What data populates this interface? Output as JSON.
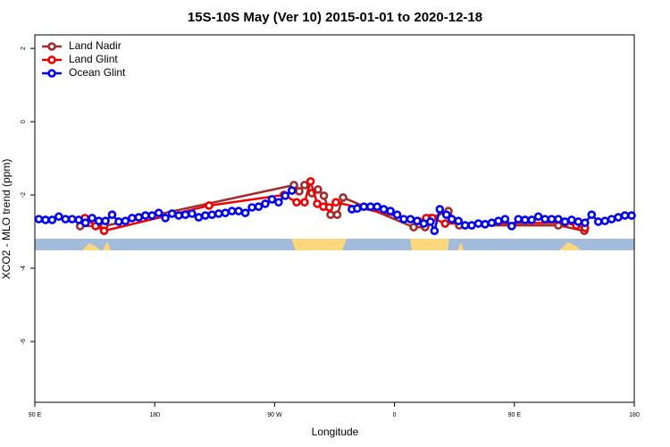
{
  "chart_data": {
    "type": "line",
    "title": "15S-10S May (Ver 10)   2015-01-01 to 2020-12-18",
    "x_label": "Longitude",
    "y_label": "XCO2 - MLO trend (ppm)",
    "xlim": [
      90,
      540
    ],
    "ylim": [
      -7.66,
      2.37
    ],
    "xticks": [
      {
        "value": 90,
        "label": "90 E"
      },
      180,
      {
        "value": 270,
        "label": "90 W"
      },
      {
        "value": 360,
        "label": "0"
      },
      {
        "value": 450,
        "label": "90 E"
      },
      {
        "value": 540,
        "label": "180"
      }
    ],
    "yticks": [
      -6,
      -4,
      -2,
      0,
      2
    ],
    "legend": "top-left",
    "series": [
      {
        "name": "Land Nadir",
        "color": "#a52a2a",
        "x": [
          124,
          142,
          284.5,
          288.5,
          292.5,
          298,
          302.6,
          307,
          312,
          317,
          321.4,
          374.4,
          383,
          387,
          400.5,
          408.6,
          483,
          502.5
        ],
        "values": [
          -2.85,
          -2.85,
          -1.73,
          -1.9,
          -1.73,
          -1.95,
          -1.85,
          -2.02,
          -2.54,
          -2.54,
          -2.07,
          -2.88,
          -2.88,
          -2.63,
          -2.44,
          -2.83,
          -2.83,
          -2.98
        ]
      },
      {
        "name": "Land Glint",
        "color": "#ee0000",
        "x": [
          127.6,
          135.6,
          142,
          220.8,
          277,
          286.5,
          292.5,
          297,
          302,
          306.6,
          311,
          316,
          377.7,
          383.8,
          388.5,
          398,
          487.7,
          496.5,
          503
        ],
        "values": [
          -2.63,
          -2.85,
          -2.98,
          -2.29,
          -2.0,
          -2.2,
          -2.2,
          -1.63,
          -2.24,
          -2.32,
          -2.34,
          -2.2,
          -2.71,
          -2.63,
          -2.63,
          -2.78,
          -2.76,
          -2.83,
          -2.9
        ]
      },
      {
        "name": "Ocean Glint",
        "color": "#0000ee",
        "x": [
          93,
          98,
          103,
          108,
          113,
          118,
          123,
          128,
          133,
          138,
          143,
          148,
          153,
          158,
          163,
          168,
          173,
          178,
          183,
          188,
          193,
          198,
          203,
          208,
          213,
          218,
          223,
          228,
          233,
          238,
          243,
          248,
          253,
          258,
          263,
          268,
          273,
          278,
          283,
          null,
          328,
          332,
          337,
          342,
          347,
          352,
          357,
          362,
          367,
          372,
          377,
          382,
          387,
          390,
          394,
          399,
          403,
          408,
          413,
          418,
          423,
          428,
          433,
          438,
          443,
          448,
          453,
          458,
          463,
          468,
          473,
          478,
          483,
          488,
          493,
          498,
          503,
          508,
          513,
          518,
          523,
          528,
          533,
          538
        ],
        "values": [
          -2.66,
          -2.68,
          -2.68,
          -2.59,
          -2.66,
          -2.66,
          -2.68,
          -2.76,
          -2.63,
          -2.71,
          -2.71,
          -2.54,
          -2.73,
          -2.71,
          -2.63,
          -2.61,
          -2.56,
          -2.56,
          -2.49,
          -2.63,
          -2.51,
          -2.56,
          -2.54,
          -2.51,
          -2.61,
          -2.56,
          -2.54,
          -2.51,
          -2.49,
          -2.44,
          -2.44,
          -2.49,
          -2.34,
          -2.32,
          -2.24,
          -2.12,
          -2.2,
          -2.02,
          -1.88,
          null,
          -2.39,
          -2.37,
          -2.32,
          -2.32,
          -2.32,
          -2.39,
          -2.44,
          -2.54,
          -2.66,
          -2.66,
          -2.71,
          -2.78,
          -2.73,
          -2.98,
          -2.39,
          -2.54,
          -2.66,
          -2.71,
          -2.83,
          -2.83,
          -2.78,
          -2.8,
          -2.76,
          -2.71,
          -2.66,
          -2.85,
          -2.66,
          -2.68,
          -2.68,
          -2.59,
          -2.66,
          -2.66,
          -2.66,
          -2.73,
          -2.68,
          -2.73,
          -2.76,
          -2.54,
          -2.73,
          -2.71,
          -2.66,
          -2.61,
          -2.56,
          -2.56
        ]
      }
    ]
  }
}
